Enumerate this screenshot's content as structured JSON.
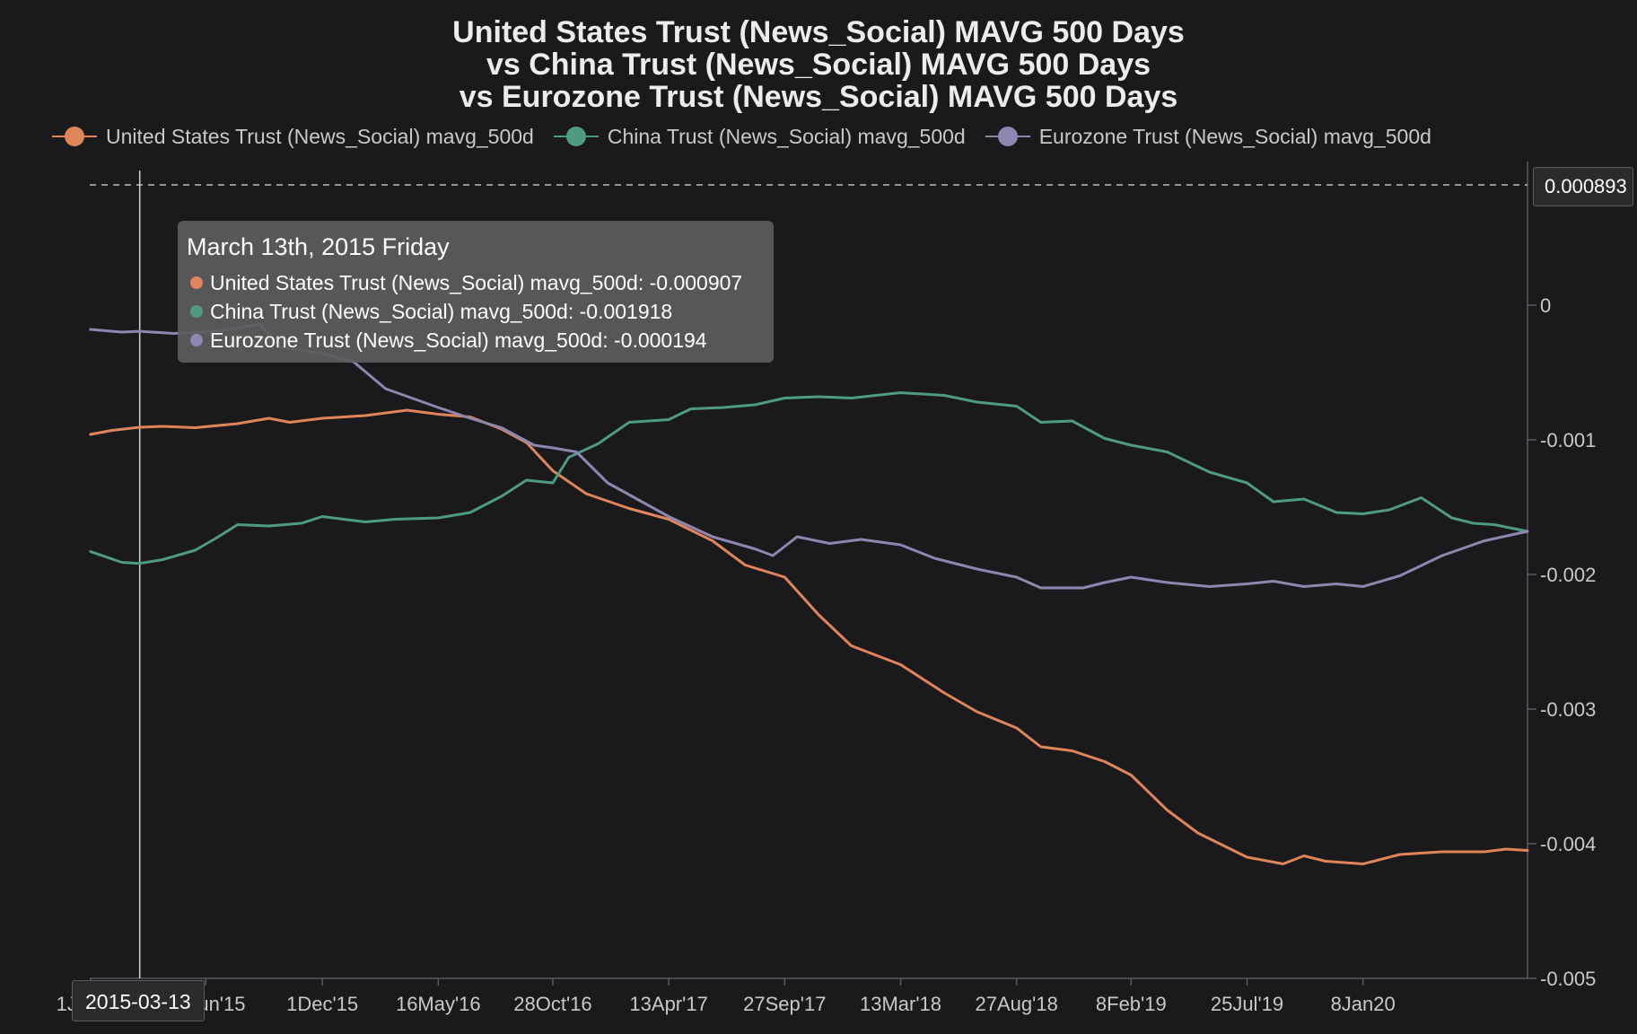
{
  "colors": {
    "background": "#1a1a1d",
    "us": "#e0855a",
    "china": "#4e9a82",
    "eurozone": "#8e86b0",
    "axis": "#5a5a5e",
    "text": "#c9c9c9"
  },
  "chart_data": {
    "type": "line",
    "title": [
      "United States Trust (News_Social) MAVG 500 Days",
      "vs China Trust (News_Social) MAVG 500 Days",
      "vs Eurozone Trust (News_Social) MAVG 500 Days"
    ],
    "legend_position": "top",
    "y_axis_position": "right",
    "ylim": [
      -0.005,
      0.001
    ],
    "y_ticks": [
      0,
      -0.001,
      -0.002,
      -0.003,
      -0.004,
      -0.005
    ],
    "y_tick_labels": [
      "0",
      "-0.001",
      "-0.002",
      "-0.003",
      "-0.004",
      "-0.005"
    ],
    "xlim": [
      "2014-12-31",
      "2020-09-01"
    ],
    "x_ticks": [
      "2015-01-01",
      "2015-06-16",
      "2015-12-01",
      "2016-05-16",
      "2016-10-28",
      "2017-04-13",
      "2017-09-27",
      "2018-03-13",
      "2018-08-27",
      "2019-02-08",
      "2019-07-25",
      "2020-01-08"
    ],
    "x_tick_labels": [
      "1Jan'15",
      "16Jun'15",
      "1Dec'15",
      "16May'16",
      "28Oct'16",
      "13Apr'17",
      "27Sep'17",
      "13Mar'18",
      "27Aug'18",
      "8Feb'19",
      "25Jul'19",
      "8Jan20"
    ],
    "grid": false,
    "series": [
      {
        "key": "us",
        "name": "United States Trust (News_Social)  mavg_500d",
        "points": [
          [
            "2015-01-01",
            -0.00096
          ],
          [
            "2015-02-01",
            -0.00093
          ],
          [
            "2015-03-13",
            -0.000907
          ],
          [
            "2015-04-15",
            -0.0009
          ],
          [
            "2015-06-01",
            -0.00091
          ],
          [
            "2015-08-01",
            -0.00088
          ],
          [
            "2015-09-15",
            -0.00084
          ],
          [
            "2015-10-15",
            -0.00087
          ],
          [
            "2015-12-01",
            -0.00084
          ],
          [
            "2016-02-01",
            -0.00082
          ],
          [
            "2016-04-01",
            -0.00078
          ],
          [
            "2016-05-16",
            -0.00081
          ],
          [
            "2016-07-01",
            -0.00083
          ],
          [
            "2016-08-15",
            -0.00092
          ],
          [
            "2016-09-20",
            -0.00102
          ],
          [
            "2016-10-28",
            -0.00123
          ],
          [
            "2016-12-15",
            -0.0014
          ],
          [
            "2017-02-15",
            -0.00151
          ],
          [
            "2017-04-13",
            -0.00159
          ],
          [
            "2017-06-15",
            -0.00175
          ],
          [
            "2017-08-01",
            -0.00193
          ],
          [
            "2017-09-27",
            -0.00202
          ],
          [
            "2017-11-15",
            -0.0023
          ],
          [
            "2018-01-01",
            -0.00253
          ],
          [
            "2018-03-13",
            -0.00267
          ],
          [
            "2018-05-15",
            -0.00288
          ],
          [
            "2018-07-01",
            -0.00302
          ],
          [
            "2018-08-27",
            -0.00314
          ],
          [
            "2018-10-01",
            -0.00328
          ],
          [
            "2018-11-15",
            -0.00331
          ],
          [
            "2019-01-01",
            -0.00339
          ],
          [
            "2019-02-08",
            -0.00349
          ],
          [
            "2019-04-01",
            -0.00375
          ],
          [
            "2019-05-15",
            -0.00392
          ],
          [
            "2019-07-25",
            -0.0041
          ],
          [
            "2019-09-15",
            -0.00415
          ],
          [
            "2019-10-15",
            -0.00409
          ],
          [
            "2019-11-15",
            -0.00413
          ],
          [
            "2020-01-08",
            -0.00415
          ],
          [
            "2020-03-01",
            -0.00408
          ],
          [
            "2020-05-01",
            -0.00406
          ],
          [
            "2020-07-01",
            -0.00406
          ],
          [
            "2020-08-01",
            -0.00404
          ],
          [
            "2020-09-01",
            -0.00405
          ]
        ]
      },
      {
        "key": "china",
        "name": "China Trust (News_Social)  mavg_500d",
        "points": [
          [
            "2015-01-01",
            -0.00183
          ],
          [
            "2015-02-15",
            -0.00191
          ],
          [
            "2015-03-13",
            -0.001918
          ],
          [
            "2015-04-15",
            -0.00189
          ],
          [
            "2015-06-01",
            -0.00182
          ],
          [
            "2015-07-01",
            -0.00173
          ],
          [
            "2015-08-01",
            -0.00163
          ],
          [
            "2015-09-15",
            -0.00164
          ],
          [
            "2015-11-01",
            -0.00162
          ],
          [
            "2015-12-01",
            -0.00157
          ],
          [
            "2016-02-01",
            -0.00161
          ],
          [
            "2016-03-15",
            -0.00159
          ],
          [
            "2016-05-16",
            -0.00158
          ],
          [
            "2016-07-01",
            -0.00154
          ],
          [
            "2016-08-15",
            -0.00142
          ],
          [
            "2016-09-20",
            -0.0013
          ],
          [
            "2016-10-28",
            -0.00132
          ],
          [
            "2016-11-20",
            -0.00113
          ],
          [
            "2017-01-01",
            -0.00103
          ],
          [
            "2017-02-15",
            -0.00087
          ],
          [
            "2017-04-13",
            -0.00085
          ],
          [
            "2017-05-15",
            -0.00077
          ],
          [
            "2017-07-01",
            -0.00076
          ],
          [
            "2017-08-15",
            -0.00074
          ],
          [
            "2017-09-27",
            -0.00069
          ],
          [
            "2017-11-15",
            -0.00068
          ],
          [
            "2018-01-01",
            -0.00069
          ],
          [
            "2018-03-13",
            -0.00065
          ],
          [
            "2018-05-15",
            -0.00067
          ],
          [
            "2018-07-01",
            -0.00072
          ],
          [
            "2018-08-27",
            -0.00075
          ],
          [
            "2018-10-01",
            -0.00087
          ],
          [
            "2018-11-15",
            -0.00086
          ],
          [
            "2019-01-01",
            -0.00099
          ],
          [
            "2019-02-08",
            -0.00104
          ],
          [
            "2019-04-01",
            -0.00109
          ],
          [
            "2019-06-01",
            -0.00124
          ],
          [
            "2019-07-25",
            -0.00132
          ],
          [
            "2019-09-01",
            -0.00146
          ],
          [
            "2019-10-15",
            -0.00144
          ],
          [
            "2019-12-01",
            -0.00154
          ],
          [
            "2020-01-08",
            -0.00155
          ],
          [
            "2020-02-15",
            -0.00152
          ],
          [
            "2020-04-01",
            -0.00143
          ],
          [
            "2020-05-15",
            -0.00158
          ],
          [
            "2020-06-15",
            -0.00162
          ],
          [
            "2020-07-15",
            -0.00163
          ],
          [
            "2020-09-01",
            -0.00168
          ]
        ]
      },
      {
        "key": "eurozone",
        "name": "Eurozone Trust (News_Social)  mavg_500d",
        "points": [
          [
            "2015-01-01",
            -0.00018
          ],
          [
            "2015-02-15",
            -0.0002
          ],
          [
            "2015-03-13",
            -0.000194
          ],
          [
            "2015-05-01",
            -0.00021
          ],
          [
            "2015-06-16",
            -0.0002
          ],
          [
            "2015-08-01",
            -0.00017
          ],
          [
            "2015-09-01",
            -0.00014
          ],
          [
            "2015-10-01",
            -0.00031
          ],
          [
            "2015-12-01",
            -0.00036
          ],
          [
            "2016-01-15",
            -0.00042
          ],
          [
            "2016-03-01",
            -0.00062
          ],
          [
            "2016-05-16",
            -0.00076
          ],
          [
            "2016-07-01",
            -0.00084
          ],
          [
            "2016-08-15",
            -0.00091
          ],
          [
            "2016-10-01",
            -0.00104
          ],
          [
            "2016-10-28",
            -0.00106
          ],
          [
            "2016-12-01",
            -0.00109
          ],
          [
            "2017-01-15",
            -0.00132
          ],
          [
            "2017-04-13",
            -0.00157
          ],
          [
            "2017-06-15",
            -0.00172
          ],
          [
            "2017-08-15",
            -0.00181
          ],
          [
            "2017-09-10",
            -0.00186
          ],
          [
            "2017-10-15",
            -0.00172
          ],
          [
            "2017-12-01",
            -0.00177
          ],
          [
            "2018-01-15",
            -0.00174
          ],
          [
            "2018-03-13",
            -0.00178
          ],
          [
            "2018-05-01",
            -0.00188
          ],
          [
            "2018-07-01",
            -0.00196
          ],
          [
            "2018-08-27",
            -0.00202
          ],
          [
            "2018-10-01",
            -0.0021
          ],
          [
            "2018-12-01",
            -0.0021
          ],
          [
            "2019-01-01",
            -0.00206
          ],
          [
            "2019-02-08",
            -0.00202
          ],
          [
            "2019-04-01",
            -0.00206
          ],
          [
            "2019-06-01",
            -0.00209
          ],
          [
            "2019-07-25",
            -0.00207
          ],
          [
            "2019-09-01",
            -0.00205
          ],
          [
            "2019-10-15",
            -0.00209
          ],
          [
            "2019-12-01",
            -0.00207
          ],
          [
            "2020-01-08",
            -0.00209
          ],
          [
            "2020-03-01",
            -0.00201
          ],
          [
            "2020-05-01",
            -0.00186
          ],
          [
            "2020-07-01",
            -0.00175
          ],
          [
            "2020-09-01",
            -0.00168
          ]
        ]
      }
    ],
    "annotations": {
      "dashed_reference_value": 0.000893,
      "dashed_reference_label": "0.000893",
      "crosshair_date": "2015-03-13",
      "crosshair_label": "2015-03-13"
    }
  },
  "tooltip": {
    "date": "March 13th, 2015 Friday",
    "rows": [
      {
        "key": "us",
        "text": "United States Trust (News_Social) mavg_500d: -0.000907"
      },
      {
        "key": "china",
        "text": "China Trust (News_Social) mavg_500d: -0.001918"
      },
      {
        "key": "eurozone",
        "text": "Eurozone Trust (News_Social) mavg_500d: -0.000194"
      }
    ]
  }
}
